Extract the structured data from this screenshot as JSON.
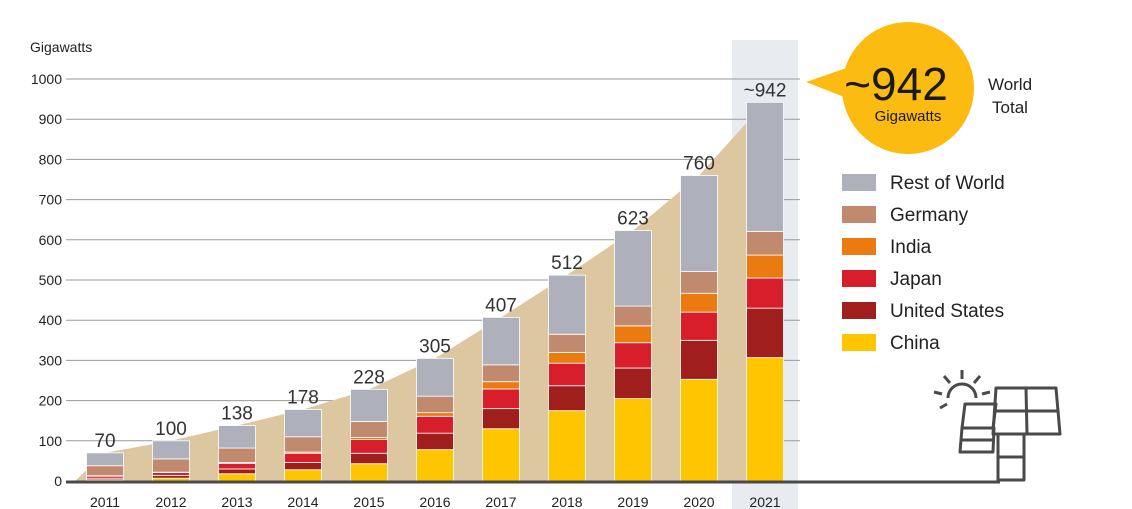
{
  "chart_data": {
    "type": "bar",
    "stacked": true,
    "ylabel": "Gigawatts",
    "ylim": [
      0,
      1000
    ],
    "yticks": [
      "0",
      "100",
      "200",
      "300",
      "400",
      "500",
      "600",
      "700",
      "800",
      "900",
      "1000"
    ],
    "categories": [
      "2011",
      "2012",
      "2013",
      "2014",
      "2015",
      "2016",
      "2017",
      "2018",
      "2019",
      "2020",
      "2021"
    ],
    "totals": [
      "70",
      "100",
      "138",
      "178",
      "228",
      "305",
      "407",
      "512",
      "623",
      "760",
      "~942"
    ],
    "total_values": [
      70,
      100,
      138,
      178,
      228,
      305,
      407,
      512,
      623,
      760,
      942
    ],
    "series": [
      {
        "name": "China",
        "color": "#ffc600",
        "values": [
          3,
          7,
          18,
          28,
          43,
          78,
          130,
          175,
          205,
          253,
          307
        ]
      },
      {
        "name": "United States",
        "color": "#a01f1d",
        "values": [
          4,
          7,
          12,
          18,
          26,
          41,
          50,
          62,
          76,
          97,
          123
        ]
      },
      {
        "name": "Japan",
        "color": "#d81e2a",
        "values": [
          5,
          7,
          14,
          23,
          34,
          42,
          49,
          56,
          63,
          70,
          75
        ]
      },
      {
        "name": "India",
        "color": "#eb7a10",
        "values": [
          1,
          1,
          2,
          3,
          5,
          9,
          18,
          27,
          42,
          47,
          57
        ]
      },
      {
        "name": "Germany",
        "color": "#c18a6e",
        "values": [
          25,
          33,
          36,
          38,
          40,
          41,
          42,
          45,
          49,
          54,
          59
        ]
      },
      {
        "name": "Rest of World",
        "color": "#aeb1bc",
        "values": [
          32,
          45,
          56,
          68,
          80,
          94,
          118,
          147,
          188,
          239,
          321
        ]
      }
    ],
    "highlight_category": "2021",
    "grid": true,
    "legend_position": "right"
  },
  "badge": {
    "value": "~942",
    "unit": "Gigawatts",
    "caption_line1": "World",
    "caption_line2": "Total"
  },
  "colors": {
    "area": "#dcc7a1",
    "highlight": "#e8ebf0",
    "badge": "#fbbb10",
    "axis": "#4a4a4a",
    "grid": "#9a9a9a"
  },
  "icons": [
    "solar-panel-icon",
    "sun-icon"
  ]
}
